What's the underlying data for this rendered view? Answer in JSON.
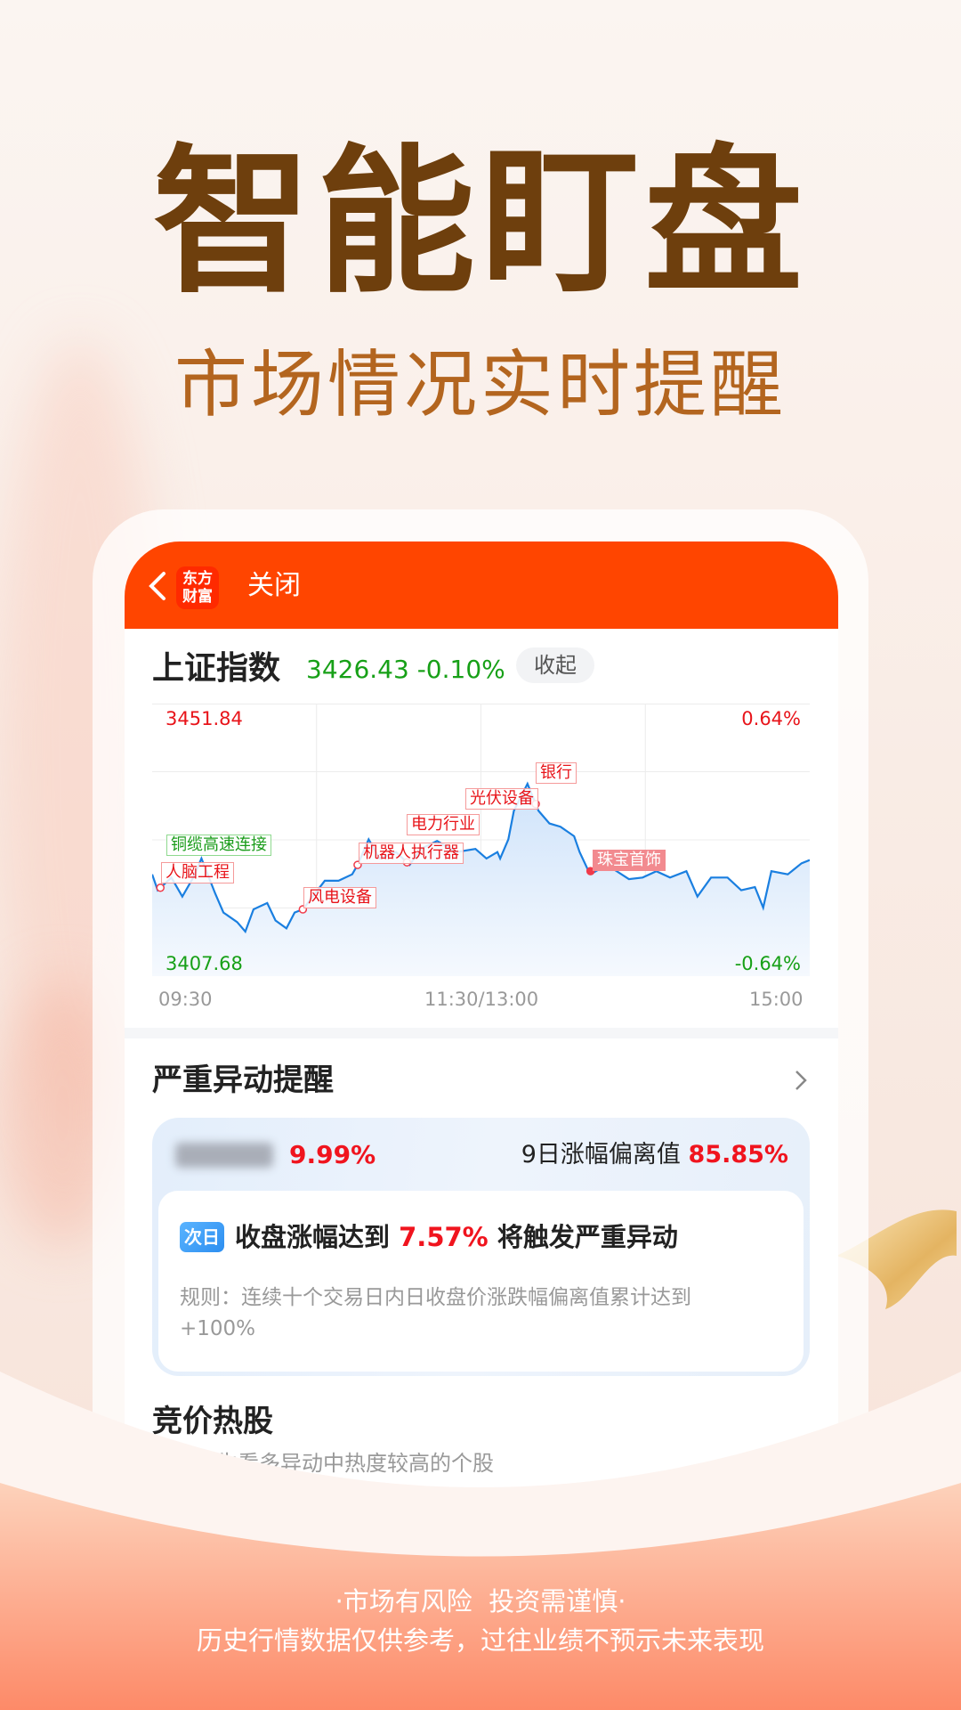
{
  "hero": {
    "title": "智能盯盘",
    "subtitle": "市场情况实时提醒"
  },
  "topbar": {
    "logo_text_line1": "东方",
    "logo_text_line2": "财富",
    "close_label": "关闭",
    "color": "#ff4500"
  },
  "index": {
    "name": "上证指数",
    "price": "3426.43",
    "change": "-0.10%",
    "collapse_label": "收起"
  },
  "chart_data": {
    "type": "line",
    "y_top_label": "3451.84",
    "y_bottom_label": "3407.68",
    "pct_top_label": "0.64%",
    "pct_bottom_label": "-0.64%",
    "ylim": [
      3407.68,
      3451.84
    ],
    "x_tick_labels": [
      "09:30",
      "11:30/13:00",
      "15:00"
    ],
    "grid": true,
    "series": [
      {
        "color": "#1a7fe0",
        "x": [
          "09:30",
          "09:32",
          "09:37",
          "09:41",
          "09:45",
          "09:48",
          "09:53",
          "09:56",
          "10:01",
          "10:04",
          "10:07",
          "10:12",
          "10:15",
          "10:19",
          "10:22",
          "10:25",
          "10:33",
          "10:38",
          "10:43",
          "10:45",
          "10:49",
          "10:53",
          "10:59",
          "11:04",
          "11:08",
          "11:14",
          "11:21",
          "11:28",
          "13:02",
          "13:06",
          "13:07",
          "13:10",
          "13:12",
          "13:17",
          "13:21",
          "13:25",
          "13:29",
          "13:34",
          "13:36",
          "13:39",
          "13:41",
          "13:46",
          "13:54",
          "13:59",
          "14:04",
          "14:09",
          "14:15",
          "14:19",
          "14:24",
          "14:30",
          "14:35",
          "14:40",
          "14:43",
          "14:46",
          "14:52",
          "14:57",
          "15:00"
        ],
        "values": [
          3424.17,
          3421.59,
          3423.65,
          3420.56,
          3423.65,
          3426.74,
          3421.08,
          3417.98,
          3416.44,
          3414.89,
          3418.5,
          3419.53,
          3416.7,
          3415.41,
          3417.98,
          3418.5,
          3423.14,
          3423.14,
          3424.17,
          3425.71,
          3429.84,
          3426.74,
          3427.78,
          3425.71,
          3428.29,
          3429.58,
          3427.78,
          3428.29,
          3426.74,
          3427.78,
          3426.74,
          3429.84,
          3434.47,
          3438.85,
          3434.47,
          3432.41,
          3431.9,
          3430.35,
          3427.78,
          3424.94,
          3424.43,
          3425.71,
          3423.4,
          3423.65,
          3424.68,
          3423.65,
          3424.68,
          3420.56,
          3423.65,
          3423.65,
          3421.59,
          3422.11,
          3418.76,
          3424.68,
          3424.17,
          3425.97,
          3426.49
        ]
      }
    ],
    "annotations": [
      {
        "label": "人脑工程",
        "x": "09:33",
        "style": "red"
      },
      {
        "label": "铜缆高速连接",
        "style": "green"
      },
      {
        "label": "风电设备",
        "x": "10:25",
        "style": "red"
      },
      {
        "label": "机器人执行器",
        "x": "10:45",
        "style": "red"
      },
      {
        "label": "电力行业",
        "x": "11:03",
        "style": "red"
      },
      {
        "label": "光伏设备",
        "x": "13:20",
        "style": "red"
      },
      {
        "label": "银行",
        "style": "red"
      },
      {
        "label": "珠宝首饰",
        "x": "13:40",
        "style": "filled"
      }
    ]
  },
  "alert": {
    "title": "严重异动提醒",
    "stock_change": "9.99%",
    "deviation_label": "9日涨幅偏离值",
    "deviation_value": "85.85%",
    "badge": "次日",
    "trigger_prefix": "收盘涨幅达到",
    "trigger_value": "7.57%",
    "trigger_suffix": "将触发严重异动",
    "rule_line1": "规则：连续十个交易日内日收盘价涨跌幅偏离值累计达到",
    "rule_line2": "+100%"
  },
  "hot": {
    "title": "竞价热股",
    "subtitle": "展示产生看多异动中热度较高的个股"
  },
  "disclaimer": {
    "line1": "·市场有风险  投资需谨慎·",
    "line2": "历史行情数据仅供参考，过往业绩不预示未来表现"
  }
}
